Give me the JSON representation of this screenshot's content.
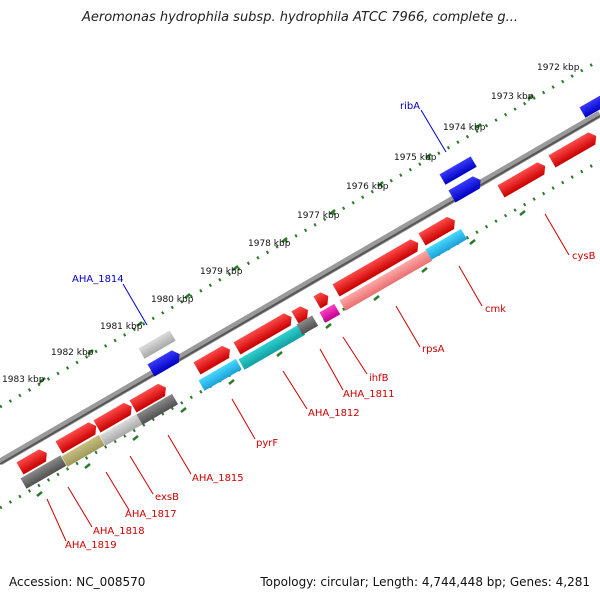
{
  "title": "Aeromonas hydrophila subsp. hydrophila ATCC 7966, complete g...",
  "footer": {
    "accession": "Accession: NC_008570",
    "summary": "Topology: circular; Length: 4,744,448 bp; Genes: 4,281"
  },
  "colors": {
    "forward_gene": "#e60000",
    "backbone": "#808080",
    "scale_tick": "#2a7a2a",
    "gene_label": "#cc0000",
    "highlight_label": "#0000cc"
  },
  "scale": {
    "labels": [
      "1972 kbp",
      "1973 kbp",
      "1974 kbp",
      "1975 kbp",
      "1976 kbp",
      "1977 kbp",
      "1978 kbp",
      "1979 kbp",
      "1980 kbp",
      "1981 kbp",
      "1982 kbp",
      "1983 kbp"
    ]
  },
  "gene_labels": [
    {
      "text": "ribA",
      "color": "blue"
    },
    {
      "text": "AHA_1814",
      "color": "blue"
    },
    {
      "text": "cysB",
      "color": "red"
    },
    {
      "text": "cmk",
      "color": "red"
    },
    {
      "text": "rpsA",
      "color": "red"
    },
    {
      "text": "ihfB",
      "color": "red"
    },
    {
      "text": "AHA_1811",
      "color": "red"
    },
    {
      "text": "AHA_1812",
      "color": "red"
    },
    {
      "text": "pyrF",
      "color": "red"
    },
    {
      "text": "AHA_1815",
      "color": "red"
    },
    {
      "text": "exsB",
      "color": "red"
    },
    {
      "text": "AHA_1817",
      "color": "red"
    },
    {
      "text": "AHA_1818",
      "color": "red"
    },
    {
      "text": "AHA_1819",
      "color": "red"
    }
  ]
}
